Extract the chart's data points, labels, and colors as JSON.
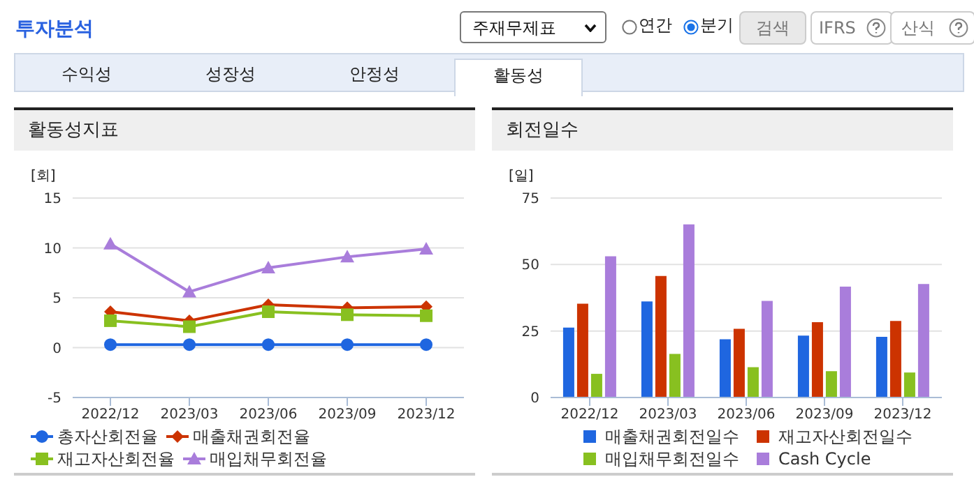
{
  "chart_data": [
    {
      "type": "line",
      "title": "활동성지표",
      "ylabel": "[회]",
      "annotations": [
        "투자분석",
        "주재무제표",
        "연간",
        "분기",
        "검색",
        "IFRS",
        "산식",
        "수익성",
        "성장성",
        "안정성",
        "활동성"
      ],
      "categories": [
        "2022/12",
        "2023/03",
        "2023/06",
        "2023/09",
        "2023/12"
      ],
      "series": [
        {
          "name": "총자산회전율",
          "color": "#1f66e0",
          "marker": "circle",
          "values": [
            0.3,
            0.3,
            0.3,
            0.3,
            0.3
          ]
        },
        {
          "name": "매출채권회전율",
          "color": "#cc3300",
          "marker": "diamond",
          "values": [
            3.6,
            2.7,
            4.3,
            4.0,
            4.1
          ]
        },
        {
          "name": "재고자산회전율",
          "color": "#88c020",
          "marker": "square",
          "values": [
            2.7,
            2.1,
            3.6,
            3.3,
            3.2
          ]
        },
        {
          "name": "매입채무회전율",
          "color": "#a97ddb",
          "marker": "triangle",
          "values": [
            10.4,
            5.6,
            8.0,
            9.1,
            9.9
          ]
        }
      ],
      "ylim": [
        -5,
        15
      ],
      "yticks": [
        -5,
        0,
        5,
        10,
        15
      ],
      "grid": "y",
      "legend": "bottom"
    },
    {
      "type": "bar",
      "title": "회전일수",
      "ylabel": "[일]",
      "categories": [
        "2022/12",
        "2023/03",
        "2023/06",
        "2023/09",
        "2023/12"
      ],
      "series": [
        {
          "name": "매출채권회전일수",
          "color": "#1f66e0",
          "values": [
            26.3,
            36.1,
            21.9,
            23.3,
            22.8
          ]
        },
        {
          "name": "재고자산회전일수",
          "color": "#cc3300",
          "values": [
            35.3,
            45.7,
            25.8,
            28.3,
            28.8
          ]
        },
        {
          "name": "매입채무회전일수",
          "color": "#88c020",
          "values": [
            8.9,
            16.4,
            11.4,
            9.9,
            9.4
          ]
        },
        {
          "name": "Cash Cycle",
          "color": "#a97ddb",
          "values": [
            53.1,
            65.1,
            36.3,
            41.7,
            42.7
          ]
        }
      ],
      "ylim": [
        0,
        75
      ],
      "yticks": [
        0,
        25,
        50,
        75
      ],
      "grid": "y",
      "legend": "bottom"
    }
  ]
}
